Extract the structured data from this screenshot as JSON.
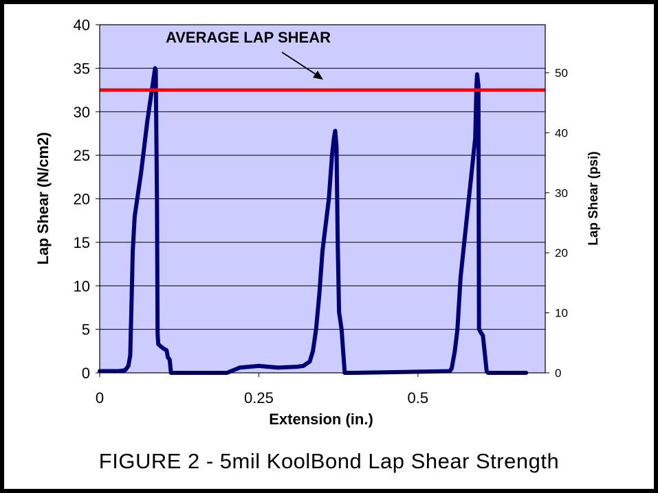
{
  "caption": "FIGURE 2 - 5mil KoolBond Lap Shear Strength",
  "chart_data": {
    "type": "line",
    "title": "",
    "xlabel": "Extension (in.)",
    "ylabel": "Lap Shear (N/cm2)",
    "y2label": "Lap Shear (psi)",
    "xlim": [
      0,
      0.7
    ],
    "ylim": [
      0,
      40
    ],
    "y2lim": [
      0,
      58
    ],
    "xticks": [
      0,
      0.25,
      0.5
    ],
    "xtick_labels": [
      "0",
      "0.25",
      "0.5"
    ],
    "yticks": [
      0,
      5,
      10,
      15,
      20,
      25,
      30,
      35,
      40
    ],
    "ytick_labels": [
      "0",
      "5",
      "10",
      "15",
      "20",
      "25",
      "30",
      "35",
      "40"
    ],
    "y2ticks": [
      0,
      10,
      20,
      30,
      40,
      50
    ],
    "y2tick_labels": [
      "0",
      "10",
      "20",
      "30",
      "40",
      "50"
    ],
    "grid": true,
    "plot_background": "#ccccff",
    "series": [
      {
        "name": "Lap Shear",
        "color": "#00007a",
        "x": [
          0,
          0.03,
          0.04,
          0.045,
          0.048,
          0.05,
          0.052,
          0.055,
          0.065,
          0.075,
          0.085,
          0.087,
          0.088,
          0.09,
          0.091,
          0.092,
          0.095,
          0.1,
          0.105,
          0.107,
          0.11,
          0.112,
          0.2,
          0.22,
          0.25,
          0.28,
          0.31,
          0.32,
          0.33,
          0.335,
          0.34,
          0.345,
          0.35,
          0.36,
          0.365,
          0.368,
          0.37,
          0.372,
          0.374,
          0.376,
          0.38,
          0.382,
          0.385,
          0.4,
          0.55,
          0.553,
          0.558,
          0.562,
          0.567,
          0.58,
          0.59,
          0.592,
          0.593,
          0.595,
          0.596,
          0.6,
          0.602,
          0.604,
          0.608,
          0.61,
          0.67
        ],
        "y": [
          0.2,
          0.2,
          0.3,
          0.8,
          2,
          8,
          14,
          18,
          23,
          29,
          34,
          35,
          34.8,
          20,
          4.5,
          3.3,
          3.1,
          2.8,
          2.6,
          1.8,
          1.5,
          0,
          0,
          0.6,
          0.8,
          0.6,
          0.7,
          0.8,
          1.3,
          2.5,
          5,
          9,
          14,
          20,
          25,
          27,
          27.8,
          26,
          15,
          7,
          5,
          3,
          0,
          0,
          0.2,
          0.5,
          2.5,
          5,
          11,
          20,
          27,
          33,
          34.3,
          33,
          5,
          4.5,
          4.3,
          3,
          0.2,
          0,
          0
        ]
      }
    ],
    "reference_line": {
      "label": "AVERAGE LAP SHEAR",
      "value": 32.5,
      "color": "#ff0000"
    }
  }
}
